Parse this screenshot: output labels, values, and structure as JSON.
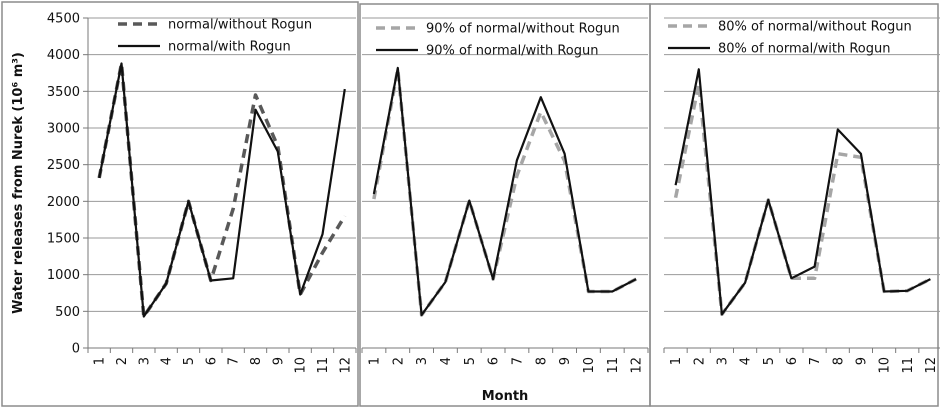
{
  "chart_data": [
    {
      "type": "line",
      "ylabel": "Water releases from Nurek (10⁶ m³)",
      "xlabel": "",
      "ylim": [
        0,
        4500
      ],
      "yticks": [
        0,
        500,
        1000,
        1500,
        2000,
        2500,
        3000,
        3500,
        4000,
        4500
      ],
      "categories": [
        "1",
        "2",
        "3",
        "4",
        "5",
        "6",
        "7",
        "8",
        "9",
        "10",
        "11",
        "12"
      ],
      "grid": true,
      "legend_position": "top-right",
      "series": [
        {
          "name": "normal/without Rogun",
          "style": "dashed",
          "color": "#595959",
          "values": [
            2320,
            3880,
            430,
            880,
            2000,
            920,
            1900,
            3450,
            2750,
            730,
            1300,
            1800
          ]
        },
        {
          "name": "normal/with Rogun",
          "style": "solid",
          "color": "#111111",
          "values": [
            2320,
            3880,
            430,
            880,
            2000,
            920,
            950,
            3250,
            2680,
            730,
            1550,
            3530
          ]
        }
      ]
    },
    {
      "type": "line",
      "ylabel": "",
      "xlabel": "Month",
      "ylim": [
        0,
        4500
      ],
      "categories": [
        "1",
        "2",
        "3",
        "4",
        "5",
        "6",
        "7",
        "8",
        "9",
        "10",
        "11",
        "12"
      ],
      "grid": true,
      "legend_position": "top-right",
      "series": [
        {
          "name": "90% of normal/without Rogun",
          "style": "dashed",
          "color": "#a6a6a6",
          "values": [
            2030,
            3800,
            450,
            900,
            2010,
            940,
            2350,
            3220,
            2550,
            770,
            770,
            940
          ]
        },
        {
          "name": "90% of normal/with Rogun",
          "style": "solid",
          "color": "#111111",
          "values": [
            2100,
            3820,
            450,
            900,
            2010,
            940,
            2560,
            3420,
            2650,
            770,
            770,
            940
          ]
        }
      ]
    },
    {
      "type": "line",
      "ylabel": "",
      "xlabel": "",
      "ylim": [
        0,
        4500
      ],
      "categories": [
        "1",
        "2",
        "3",
        "4",
        "5",
        "6",
        "7",
        "8",
        "9",
        "10",
        "11",
        "12"
      ],
      "grid": true,
      "legend_position": "top-right",
      "series": [
        {
          "name": "80% of normal/without Rogun",
          "style": "dashed",
          "color": "#a6a6a6",
          "values": [
            2050,
            3600,
            460,
            890,
            2020,
            950,
            950,
            2650,
            2600,
            770,
            780,
            940
          ]
        },
        {
          "name": "80% of normal/with Rogun",
          "style": "solid",
          "color": "#111111",
          "values": [
            2220,
            3800,
            460,
            890,
            2020,
            950,
            1110,
            2980,
            2650,
            770,
            780,
            940
          ]
        }
      ]
    }
  ]
}
